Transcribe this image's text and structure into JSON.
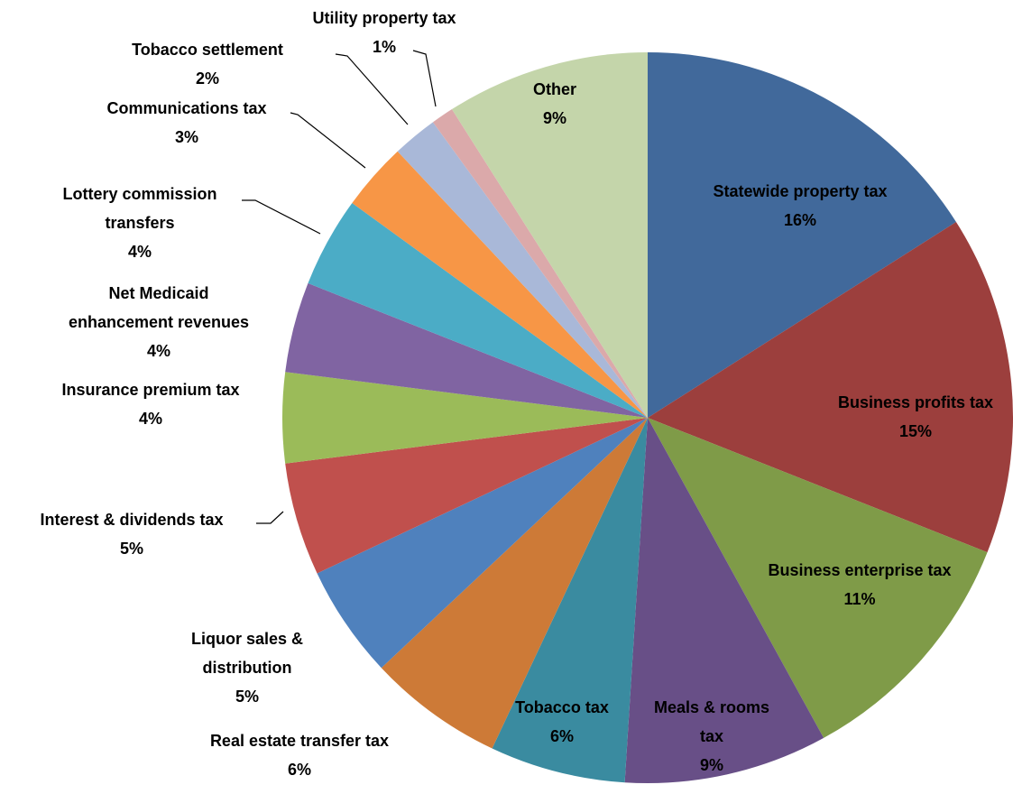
{
  "chart_data": {
    "type": "pie",
    "categories": [
      "Statewide property tax",
      "Business profits tax",
      "Business enterprise tax",
      "Meals & rooms tax",
      "Tobacco tax",
      "Real estate transfer tax",
      "Liquor sales & distribution",
      "Interest & dividends tax",
      "Insurance premium tax",
      "Net Medicaid enhancement revenues",
      "Lottery commission transfers",
      "Communications tax",
      "Tobacco settlement",
      "Utility property tax",
      "Other"
    ],
    "values": [
      16,
      15,
      11,
      9,
      6,
      6,
      5,
      5,
      4,
      4,
      4,
      3,
      2,
      1,
      9
    ],
    "value_labels": [
      "16%",
      "15%",
      "11%",
      "9%",
      "6%",
      "6%",
      "5%",
      "5%",
      "4%",
      "4%",
      "4%",
      "3%",
      "2%",
      "1%",
      "9%"
    ],
    "colors": [
      "#41699b",
      "#9c3f3d",
      "#7f9b48",
      "#684f87",
      "#3a8ba0",
      "#cd7a37",
      "#4f81bd",
      "#c0504d",
      "#9bbb59",
      "#8064a2",
      "#4bacc6",
      "#f79646",
      "#a9b8d8",
      "#dba9aa",
      "#c4d5aa"
    ]
  }
}
